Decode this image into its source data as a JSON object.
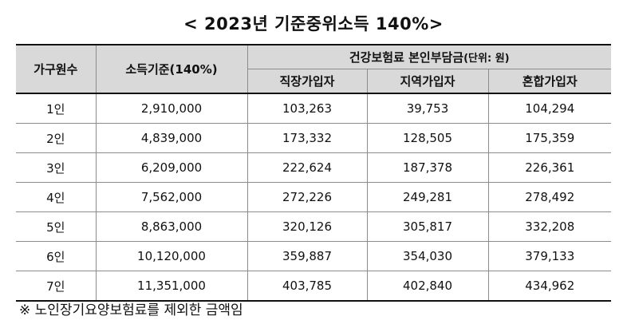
{
  "title": "< 2023년 기준중위소득 140%>",
  "table": {
    "header": {
      "household_size": "가구원수",
      "income_standard": "소득기준(140%)",
      "premium_group": "건강보험료 본인부담금",
      "premium_unit": "(단위: 원)",
      "employee": "직장가입자",
      "regional": "지역가입자",
      "mixed": "혼합가입자"
    },
    "rows": [
      {
        "size": "1인",
        "income": "2,910,000",
        "employee": "103,263",
        "regional": "39,753",
        "mixed": "104,294"
      },
      {
        "size": "2인",
        "income": "4,839,000",
        "employee": "173,332",
        "regional": "128,505",
        "mixed": "175,359"
      },
      {
        "size": "3인",
        "income": "6,209,000",
        "employee": "222,624",
        "regional": "187,378",
        "mixed": "226,361"
      },
      {
        "size": "4인",
        "income": "7,562,000",
        "employee": "272,226",
        "regional": "249,281",
        "mixed": "278,492"
      },
      {
        "size": "5인",
        "income": "8,863,000",
        "employee": "320,126",
        "regional": "305,817",
        "mixed": "332,208"
      },
      {
        "size": "6인",
        "income": "10,120,000",
        "employee": "359,887",
        "regional": "354,030",
        "mixed": "379,133"
      },
      {
        "size": "7인",
        "income": "11,351,000",
        "employee": "403,785",
        "regional": "402,840",
        "mixed": "434,962"
      }
    ]
  },
  "note": "※ 노인장기요양보험료를 제외한 금액임"
}
